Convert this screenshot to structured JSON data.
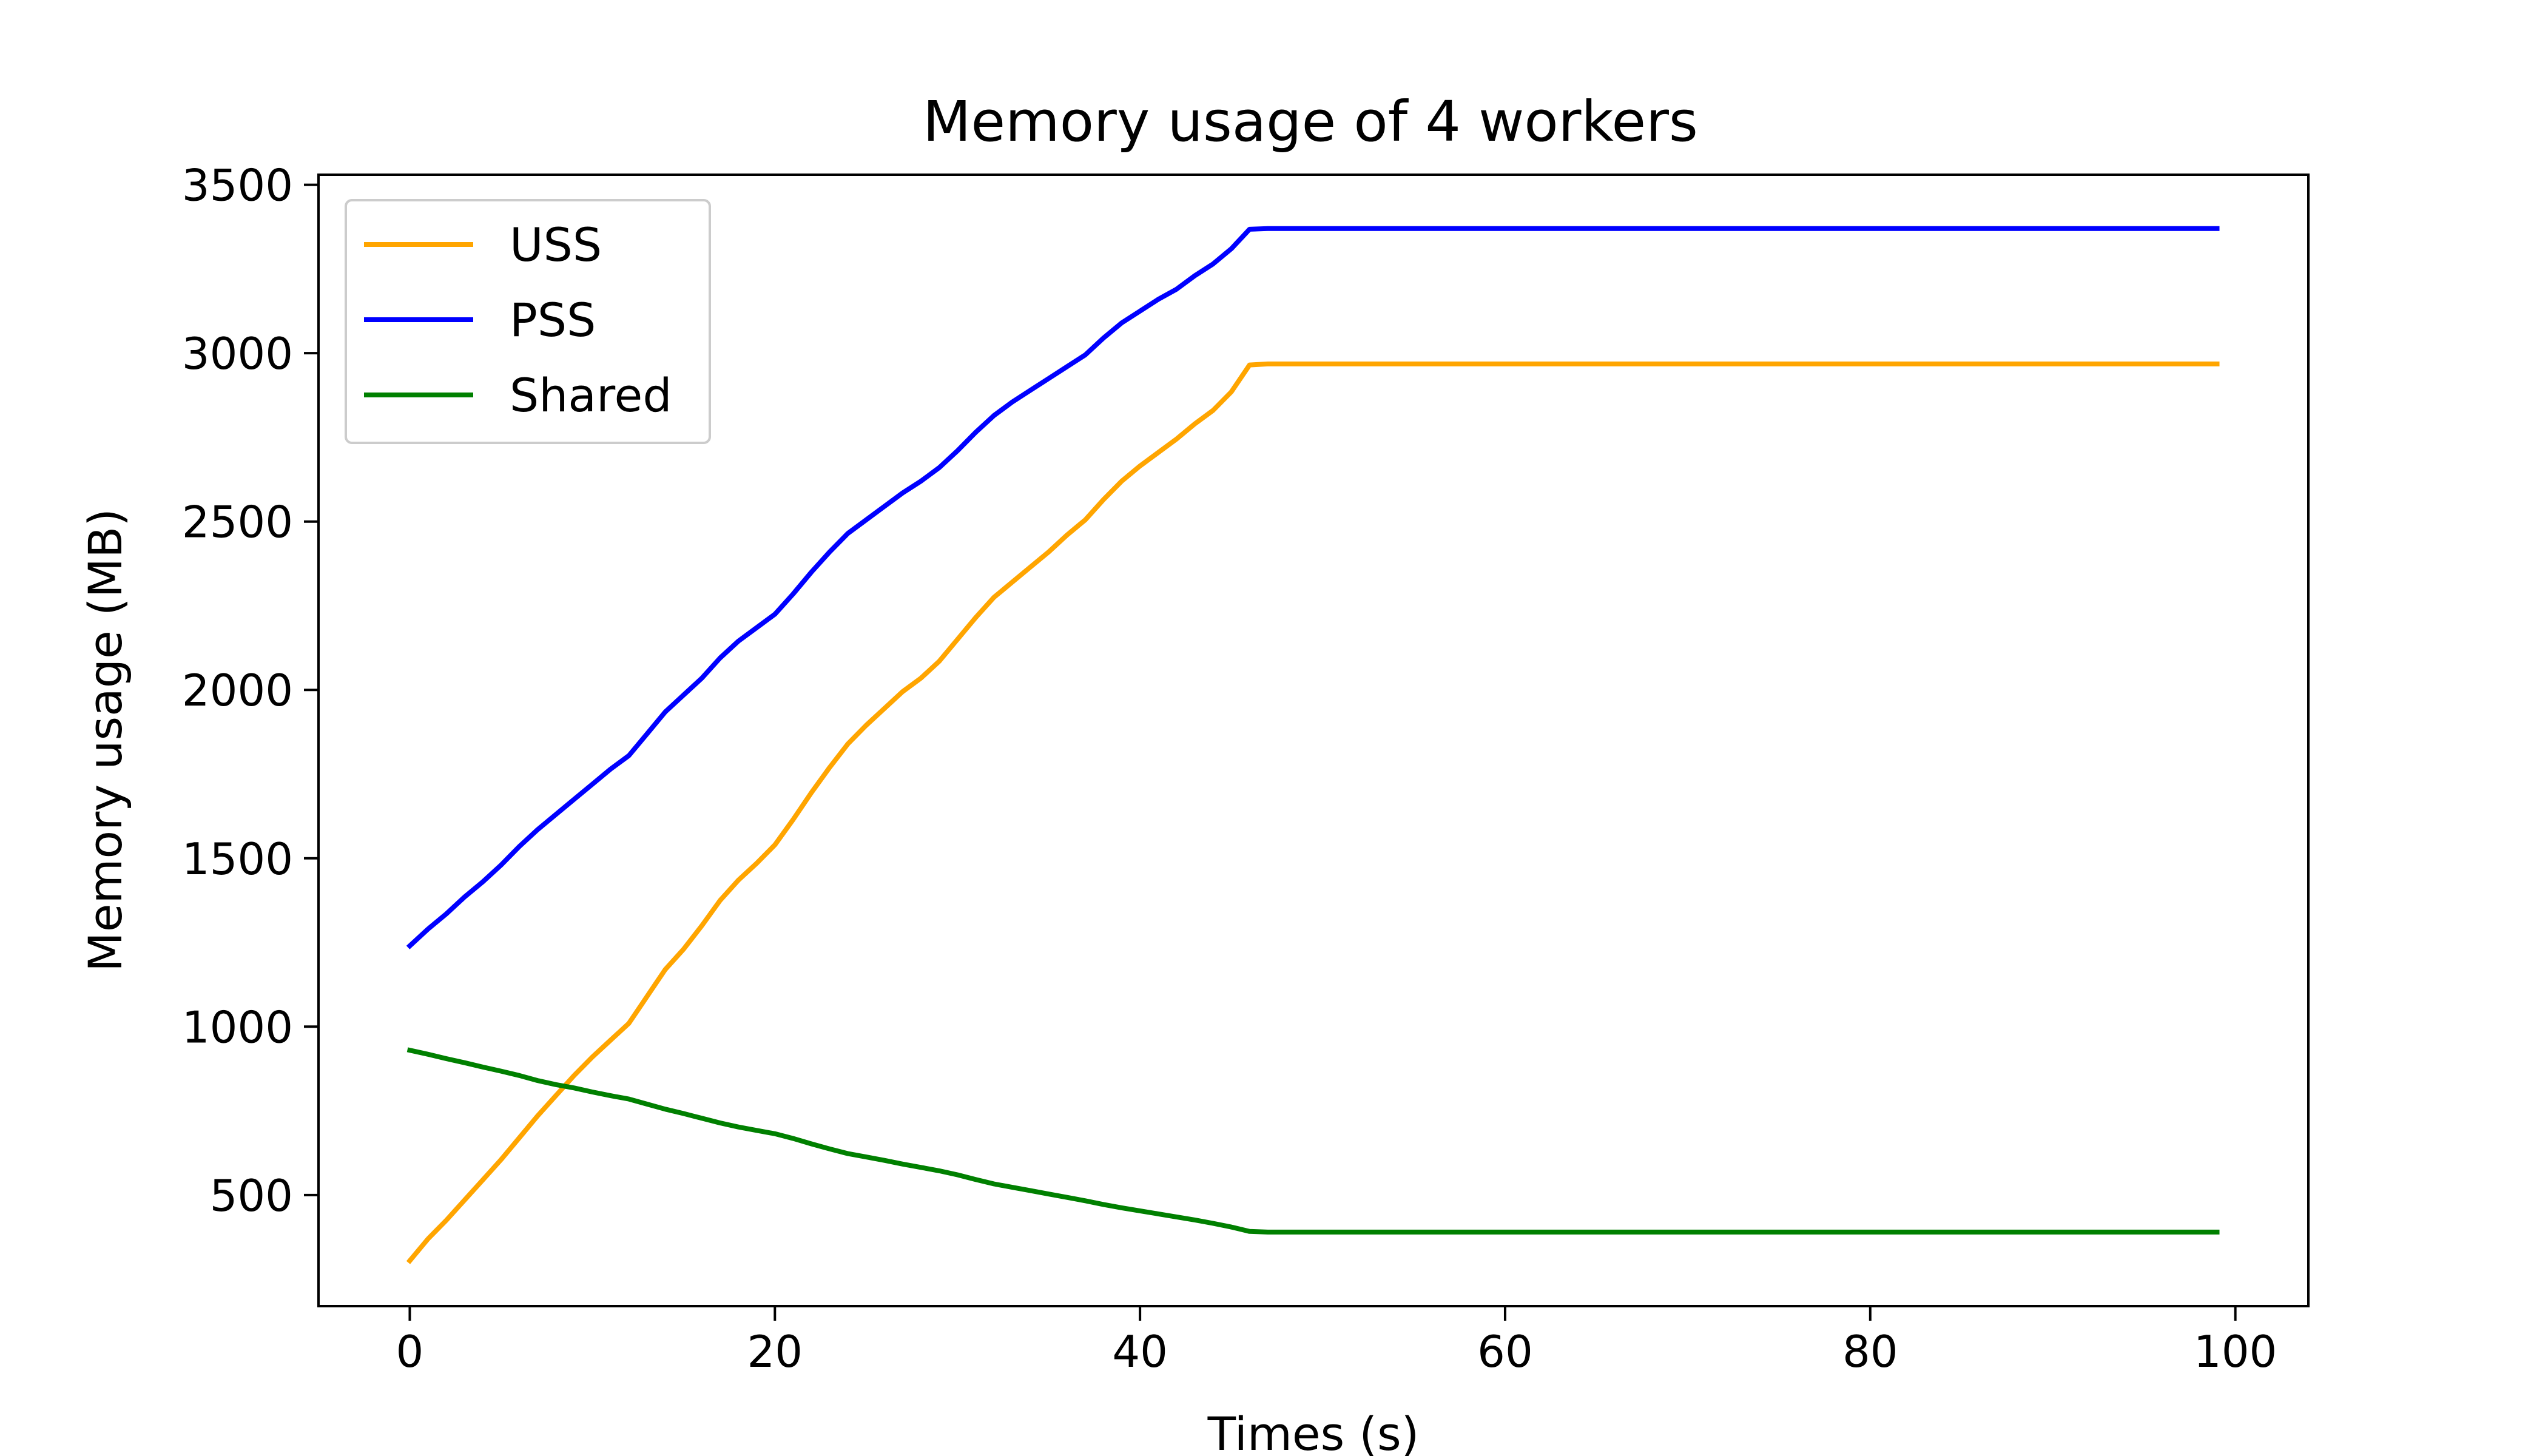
{
  "chart_data": {
    "type": "line",
    "title": "Memory usage of 4 workers",
    "xlabel": "Times (s)",
    "ylabel": "Memory usage (MB)",
    "xlim": [
      -5,
      104
    ],
    "ylim": [
      170,
      3530
    ],
    "xticks": [
      0,
      20,
      40,
      60,
      80,
      100
    ],
    "yticks": [
      500,
      1000,
      1500,
      2000,
      2500,
      3000,
      3500
    ],
    "grid": false,
    "legend_position": "upper-left",
    "series": [
      {
        "name": "USS",
        "color": "#ffa500",
        "points": [
          [
            0,
            305
          ],
          [
            1,
            370
          ],
          [
            2,
            425
          ],
          [
            3,
            485
          ],
          [
            4,
            545
          ],
          [
            5,
            605
          ],
          [
            6,
            670
          ],
          [
            7,
            735
          ],
          [
            8,
            795
          ],
          [
            9,
            855
          ],
          [
            10,
            910
          ],
          [
            11,
            960
          ],
          [
            12,
            1010
          ],
          [
            13,
            1090
          ],
          [
            14,
            1170
          ],
          [
            15,
            1230
          ],
          [
            16,
            1300
          ],
          [
            17,
            1375
          ],
          [
            18,
            1435
          ],
          [
            19,
            1485
          ],
          [
            20,
            1540
          ],
          [
            21,
            1615
          ],
          [
            22,
            1695
          ],
          [
            23,
            1770
          ],
          [
            24,
            1840
          ],
          [
            25,
            1895
          ],
          [
            26,
            1945
          ],
          [
            27,
            1995
          ],
          [
            28,
            2035
          ],
          [
            29,
            2085
          ],
          [
            30,
            2150
          ],
          [
            31,
            2215
          ],
          [
            32,
            2275
          ],
          [
            33,
            2320
          ],
          [
            34,
            2365
          ],
          [
            35,
            2410
          ],
          [
            36,
            2460
          ],
          [
            37,
            2505
          ],
          [
            38,
            2565
          ],
          [
            39,
            2620
          ],
          [
            40,
            2665
          ],
          [
            41,
            2705
          ],
          [
            42,
            2745
          ],
          [
            43,
            2790
          ],
          [
            44,
            2830
          ],
          [
            45,
            2885
          ],
          [
            46,
            2965
          ],
          [
            47,
            2968
          ],
          [
            99,
            2968
          ]
        ]
      },
      {
        "name": "PSS",
        "color": "#0000ff",
        "points": [
          [
            0,
            1240
          ],
          [
            1,
            1290
          ],
          [
            2,
            1335
          ],
          [
            3,
            1385
          ],
          [
            4,
            1430
          ],
          [
            5,
            1480
          ],
          [
            6,
            1535
          ],
          [
            7,
            1585
          ],
          [
            8,
            1630
          ],
          [
            9,
            1675
          ],
          [
            10,
            1720
          ],
          [
            11,
            1765
          ],
          [
            12,
            1805
          ],
          [
            13,
            1870
          ],
          [
            14,
            1935
          ],
          [
            15,
            1985
          ],
          [
            16,
            2035
          ],
          [
            17,
            2095
          ],
          [
            18,
            2145
          ],
          [
            19,
            2185
          ],
          [
            20,
            2225
          ],
          [
            21,
            2285
          ],
          [
            22,
            2350
          ],
          [
            23,
            2410
          ],
          [
            24,
            2465
          ],
          [
            25,
            2505
          ],
          [
            26,
            2545
          ],
          [
            27,
            2585
          ],
          [
            28,
            2620
          ],
          [
            29,
            2660
          ],
          [
            30,
            2710
          ],
          [
            31,
            2765
          ],
          [
            32,
            2815
          ],
          [
            33,
            2855
          ],
          [
            34,
            2890
          ],
          [
            35,
            2925
          ],
          [
            36,
            2960
          ],
          [
            37,
            2995
          ],
          [
            38,
            3045
          ],
          [
            39,
            3090
          ],
          [
            40,
            3125
          ],
          [
            41,
            3160
          ],
          [
            42,
            3190
          ],
          [
            43,
            3230
          ],
          [
            44,
            3265
          ],
          [
            45,
            3310
          ],
          [
            46,
            3368
          ],
          [
            47,
            3370
          ],
          [
            99,
            3370
          ]
        ]
      },
      {
        "name": "Shared",
        "color": "#008000",
        "points": [
          [
            0,
            930
          ],
          [
            1,
            918
          ],
          [
            2,
            905
          ],
          [
            3,
            893
          ],
          [
            4,
            880
          ],
          [
            5,
            868
          ],
          [
            6,
            855
          ],
          [
            7,
            840
          ],
          [
            8,
            828
          ],
          [
            9,
            818
          ],
          [
            10,
            806
          ],
          [
            11,
            795
          ],
          [
            12,
            785
          ],
          [
            13,
            770
          ],
          [
            14,
            755
          ],
          [
            15,
            742
          ],
          [
            16,
            728
          ],
          [
            17,
            714
          ],
          [
            18,
            702
          ],
          [
            19,
            692
          ],
          [
            20,
            682
          ],
          [
            21,
            668
          ],
          [
            22,
            652
          ],
          [
            23,
            637
          ],
          [
            24,
            623
          ],
          [
            25,
            613
          ],
          [
            26,
            603
          ],
          [
            27,
            592
          ],
          [
            28,
            582
          ],
          [
            29,
            572
          ],
          [
            30,
            560
          ],
          [
            31,
            546
          ],
          [
            32,
            533
          ],
          [
            33,
            523
          ],
          [
            34,
            513
          ],
          [
            35,
            503
          ],
          [
            36,
            493
          ],
          [
            37,
            483
          ],
          [
            38,
            472
          ],
          [
            39,
            462
          ],
          [
            40,
            453
          ],
          [
            41,
            444
          ],
          [
            42,
            435
          ],
          [
            43,
            426
          ],
          [
            44,
            416
          ],
          [
            45,
            405
          ],
          [
            46,
            392
          ],
          [
            47,
            390
          ],
          [
            99,
            390
          ]
        ]
      }
    ]
  }
}
